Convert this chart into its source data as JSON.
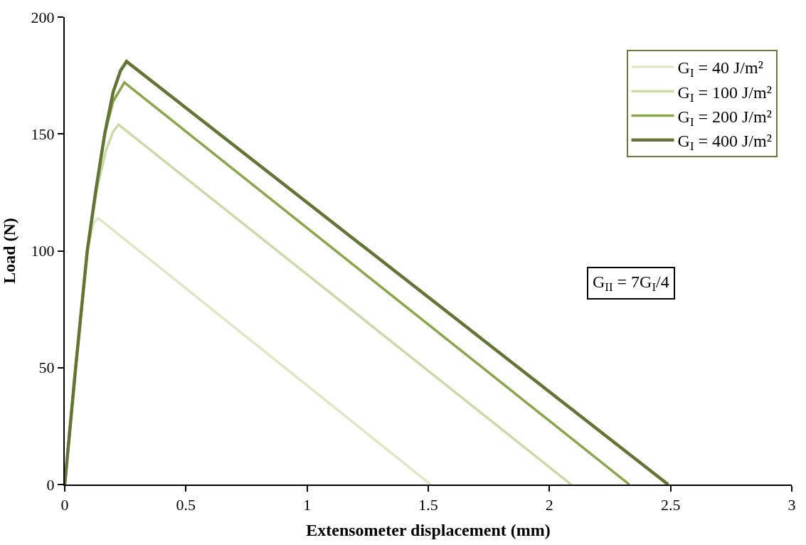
{
  "chart_data": {
    "type": "line",
    "xlabel": "Extensometer displacement (mm)",
    "ylabel": "Load (N)",
    "xlim": [
      0,
      3
    ],
    "xticks": [
      0,
      0.5,
      1,
      1.5,
      2,
      2.5,
      3
    ],
    "ylim": [
      0,
      200
    ],
    "yticks": [
      0,
      50,
      100,
      150,
      200
    ],
    "legend": "top right",
    "marker": "none",
    "line_style": "solid",
    "series": [
      {
        "name": "G$_{I}$ = 40 J/m²",
        "color": "#dce8c6",
        "x": [
          0,
          0.045,
          0.093,
          0.12,
          0.138,
          1.51
        ],
        "values": [
          0,
          50,
          100,
          112,
          114,
          0
        ]
      },
      {
        "name": "G$_{I}$ = 100 J/m²",
        "color": "#c9dca8",
        "x": [
          0,
          0.045,
          0.093,
          0.13,
          0.17,
          0.2,
          0.222,
          2.09
        ],
        "values": [
          0,
          50,
          100,
          125,
          143,
          151,
          154,
          0
        ]
      },
      {
        "name": "G$_{I}$ = 200 J/m²",
        "color": "#89a64b",
        "x": [
          0,
          0.045,
          0.093,
          0.13,
          0.165,
          0.2,
          0.246,
          2.33
        ],
        "values": [
          0,
          50,
          100,
          127,
          150,
          164,
          172,
          0
        ]
      },
      {
        "name": "G$_{I}$ = 400 J/m²",
        "color": "#627535",
        "x": [
          0,
          0.045,
          0.093,
          0.13,
          0.165,
          0.2,
          0.23,
          0.255,
          2.49
        ],
        "values": [
          0,
          50,
          100,
          127,
          150,
          168,
          177,
          181,
          0
        ]
      }
    ],
    "annotations": [
      "G$_{II}$ = 7G$_{I}$/4"
    ]
  }
}
